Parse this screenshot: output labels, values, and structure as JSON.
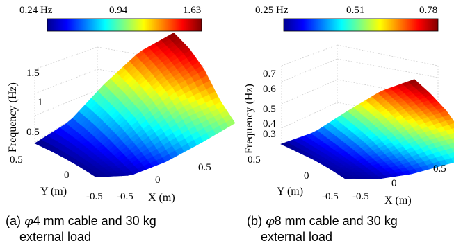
{
  "chart_data": [
    {
      "type": "surface",
      "colorbar": {
        "ticks": [
          "0.24 Hz",
          "0.94",
          "1.63"
        ],
        "range": [
          0.24,
          1.63
        ],
        "colormap": "jet"
      },
      "zlabel": "Frequency (Hz)",
      "xlabel": "X (m)",
      "ylabel": "Y (m)",
      "x_ticks": [
        "-0.5",
        "0",
        "0.5"
      ],
      "y_ticks": [
        "0.5",
        "0",
        "-0.5"
      ],
      "z_ticks": [
        "0.5",
        "1",
        "1.5"
      ],
      "x": [
        -0.5,
        -0.25,
        0,
        0.25,
        0.5
      ],
      "y": [
        0.5,
        0.25,
        0,
        -0.25,
        -0.5
      ],
      "z": [
        [
          0.24,
          0.52,
          0.98,
          1.38,
          1.63
        ],
        [
          0.26,
          0.48,
          0.9,
          1.28,
          1.55
        ],
        [
          0.27,
          0.42,
          0.8,
          1.15,
          1.4
        ],
        [
          0.27,
          0.36,
          0.65,
          0.95,
          1.15
        ],
        [
          0.26,
          0.3,
          0.48,
          0.72,
          0.98
        ]
      ],
      "caption_line1_pre": "(a) ",
      "caption_phi": "φ",
      "caption_line1_post": "4 mm cable and 30 kg",
      "caption_line2": "external load"
    },
    {
      "type": "surface",
      "colorbar": {
        "ticks": [
          "0.25 Hz",
          "0.51",
          "0.78"
        ],
        "range": [
          0.25,
          0.78
        ],
        "colormap": "jet"
      },
      "zlabel": "Frequency (Hz)",
      "xlabel": "X (m)",
      "ylabel": "Y (m)",
      "x_ticks": [
        "-0.5",
        "0",
        "0.5"
      ],
      "y_ticks": [
        "0.5",
        "0",
        "-0.5"
      ],
      "z_ticks": [
        "0.3",
        "0.4",
        "0.5",
        "0.6",
        "0.7"
      ],
      "x": [
        -0.5,
        -0.25,
        0,
        0.25,
        0.5
      ],
      "y": [
        0.5,
        0.25,
        0,
        -0.25,
        -0.5
      ],
      "z": [
        [
          0.25,
          0.35,
          0.52,
          0.68,
          0.78
        ],
        [
          0.26,
          0.33,
          0.49,
          0.64,
          0.74
        ],
        [
          0.27,
          0.31,
          0.45,
          0.58,
          0.68
        ],
        [
          0.27,
          0.29,
          0.38,
          0.5,
          0.58
        ],
        [
          0.26,
          0.27,
          0.32,
          0.4,
          0.48
        ]
      ],
      "caption_line1_pre": "(b) ",
      "caption_phi": "φ",
      "caption_line1_post": "8 mm cable and 30 kg",
      "caption_line2": "external load"
    }
  ]
}
